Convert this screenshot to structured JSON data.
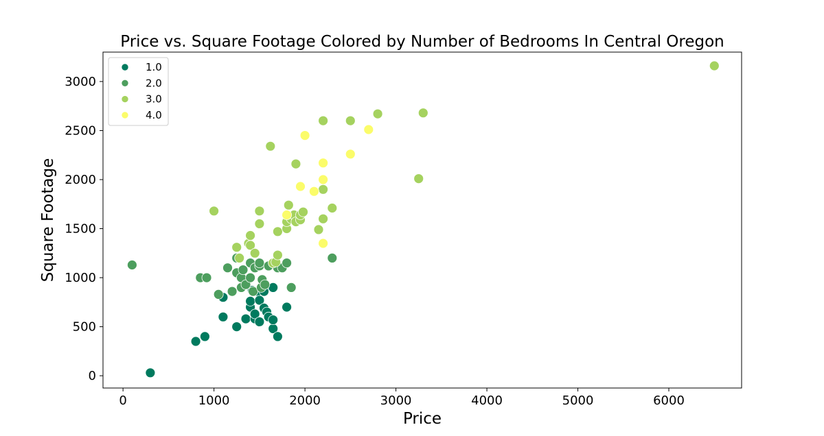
{
  "chart_data": {
    "type": "scatter",
    "title": "Price vs. Square Footage Colored by Number of Bedrooms In Central Oregon",
    "xlabel": "Price",
    "ylabel": "Square Footage",
    "xlim": [
      -220,
      6800
    ],
    "ylim": [
      -125,
      3300
    ],
    "xticks": [
      0,
      1000,
      2000,
      3000,
      4000,
      5000,
      6000
    ],
    "yticks": [
      0,
      500,
      1000,
      1500,
      2000,
      2500,
      3000
    ],
    "grid": false,
    "legend_position": "top-left",
    "series": [
      {
        "name": "1.0",
        "color": "#007a5e",
        "points": [
          [
            300,
            30
          ],
          [
            800,
            350
          ],
          [
            900,
            400
          ],
          [
            1100,
            600
          ],
          [
            1100,
            800
          ],
          [
            1250,
            500
          ],
          [
            1350,
            580
          ],
          [
            1400,
            700
          ],
          [
            1400,
            760
          ],
          [
            1420,
            870
          ],
          [
            1450,
            580
          ],
          [
            1450,
            630
          ],
          [
            1480,
            860
          ],
          [
            1500,
            550
          ],
          [
            1500,
            770
          ],
          [
            1520,
            900
          ],
          [
            1550,
            690
          ],
          [
            1550,
            860
          ],
          [
            1580,
            650
          ],
          [
            1600,
            600
          ],
          [
            1650,
            480
          ],
          [
            1650,
            570
          ],
          [
            1650,
            900
          ],
          [
            1700,
            400
          ],
          [
            1800,
            700
          ]
        ]
      },
      {
        "name": "2.0",
        "color": "#4d9e5e",
        "points": [
          [
            100,
            1130
          ],
          [
            850,
            1000
          ],
          [
            920,
            1000
          ],
          [
            1050,
            830
          ],
          [
            1150,
            1100
          ],
          [
            1200,
            860
          ],
          [
            1250,
            1050
          ],
          [
            1250,
            1200
          ],
          [
            1300,
            900
          ],
          [
            1300,
            1000
          ],
          [
            1320,
            1080
          ],
          [
            1350,
            930
          ],
          [
            1400,
            1000
          ],
          [
            1400,
            1150
          ],
          [
            1430,
            860
          ],
          [
            1450,
            1100
          ],
          [
            1500,
            1120
          ],
          [
            1500,
            1150
          ],
          [
            1520,
            900
          ],
          [
            1530,
            980
          ],
          [
            1560,
            930
          ],
          [
            1600,
            1120
          ],
          [
            1650,
            1150
          ],
          [
            1700,
            1100
          ],
          [
            1750,
            1100
          ],
          [
            1800,
            1150
          ],
          [
            1850,
            900
          ],
          [
            2300,
            1200
          ]
        ]
      },
      {
        "name": "3.0",
        "color": "#a5d25f",
        "points": [
          [
            1000,
            1680
          ],
          [
            1250,
            1310
          ],
          [
            1280,
            1200
          ],
          [
            1380,
            1350
          ],
          [
            1400,
            1330
          ],
          [
            1400,
            1430
          ],
          [
            1450,
            1250
          ],
          [
            1500,
            1550
          ],
          [
            1500,
            1680
          ],
          [
            1620,
            2340
          ],
          [
            1650,
            1150
          ],
          [
            1680,
            1160
          ],
          [
            1700,
            1230
          ],
          [
            1700,
            1470
          ],
          [
            1800,
            1500
          ],
          [
            1800,
            1570
          ],
          [
            1820,
            1740
          ],
          [
            1850,
            1600
          ],
          [
            1880,
            1640
          ],
          [
            1900,
            1570
          ],
          [
            1900,
            2160
          ],
          [
            1950,
            1590
          ],
          [
            1950,
            1640
          ],
          [
            1980,
            1670
          ],
          [
            2150,
            1490
          ],
          [
            2200,
            1600
          ],
          [
            2200,
            1900
          ],
          [
            2200,
            2600
          ],
          [
            2300,
            1710
          ],
          [
            2500,
            2600
          ],
          [
            2800,
            2670
          ],
          [
            3250,
            2010
          ],
          [
            3300,
            2680
          ],
          [
            6500,
            3160
          ]
        ]
      },
      {
        "name": "4.0",
        "color": "#fbfc6a",
        "points": [
          [
            1800,
            1640
          ],
          [
            1950,
            1930
          ],
          [
            2000,
            2450
          ],
          [
            2100,
            1880
          ],
          [
            2200,
            1350
          ],
          [
            2200,
            2000
          ],
          [
            2200,
            2170
          ],
          [
            2500,
            2260
          ],
          [
            2700,
            2510
          ]
        ]
      }
    ]
  }
}
